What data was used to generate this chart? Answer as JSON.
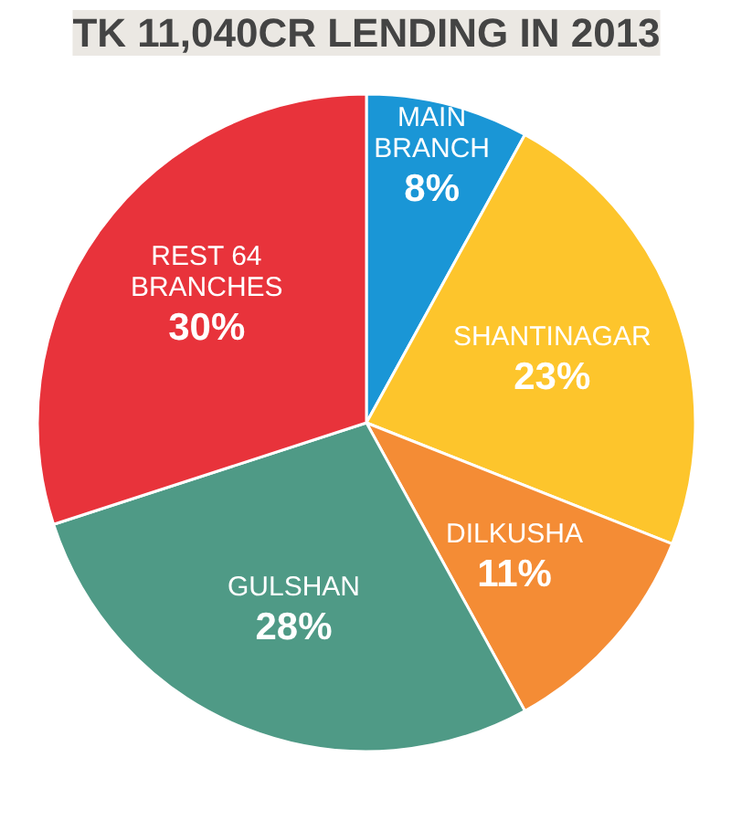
{
  "chart_data": {
    "type": "pie",
    "title": "TK 11,040CR LENDING IN 2013",
    "categories": [
      "MAIN\nBRANCH",
      "SHANTINAGAR",
      "DILKUSHA",
      "GULSHAN",
      "REST 64\nBRANCHES"
    ],
    "values": [
      8,
      23,
      11,
      28,
      30
    ],
    "value_labels": [
      "8%",
      "23%",
      "11%",
      "28%",
      "30%"
    ],
    "colors": [
      "#1a96d6",
      "#fdc52c",
      "#f48c35",
      "#4f9a86",
      "#e8333b"
    ]
  }
}
